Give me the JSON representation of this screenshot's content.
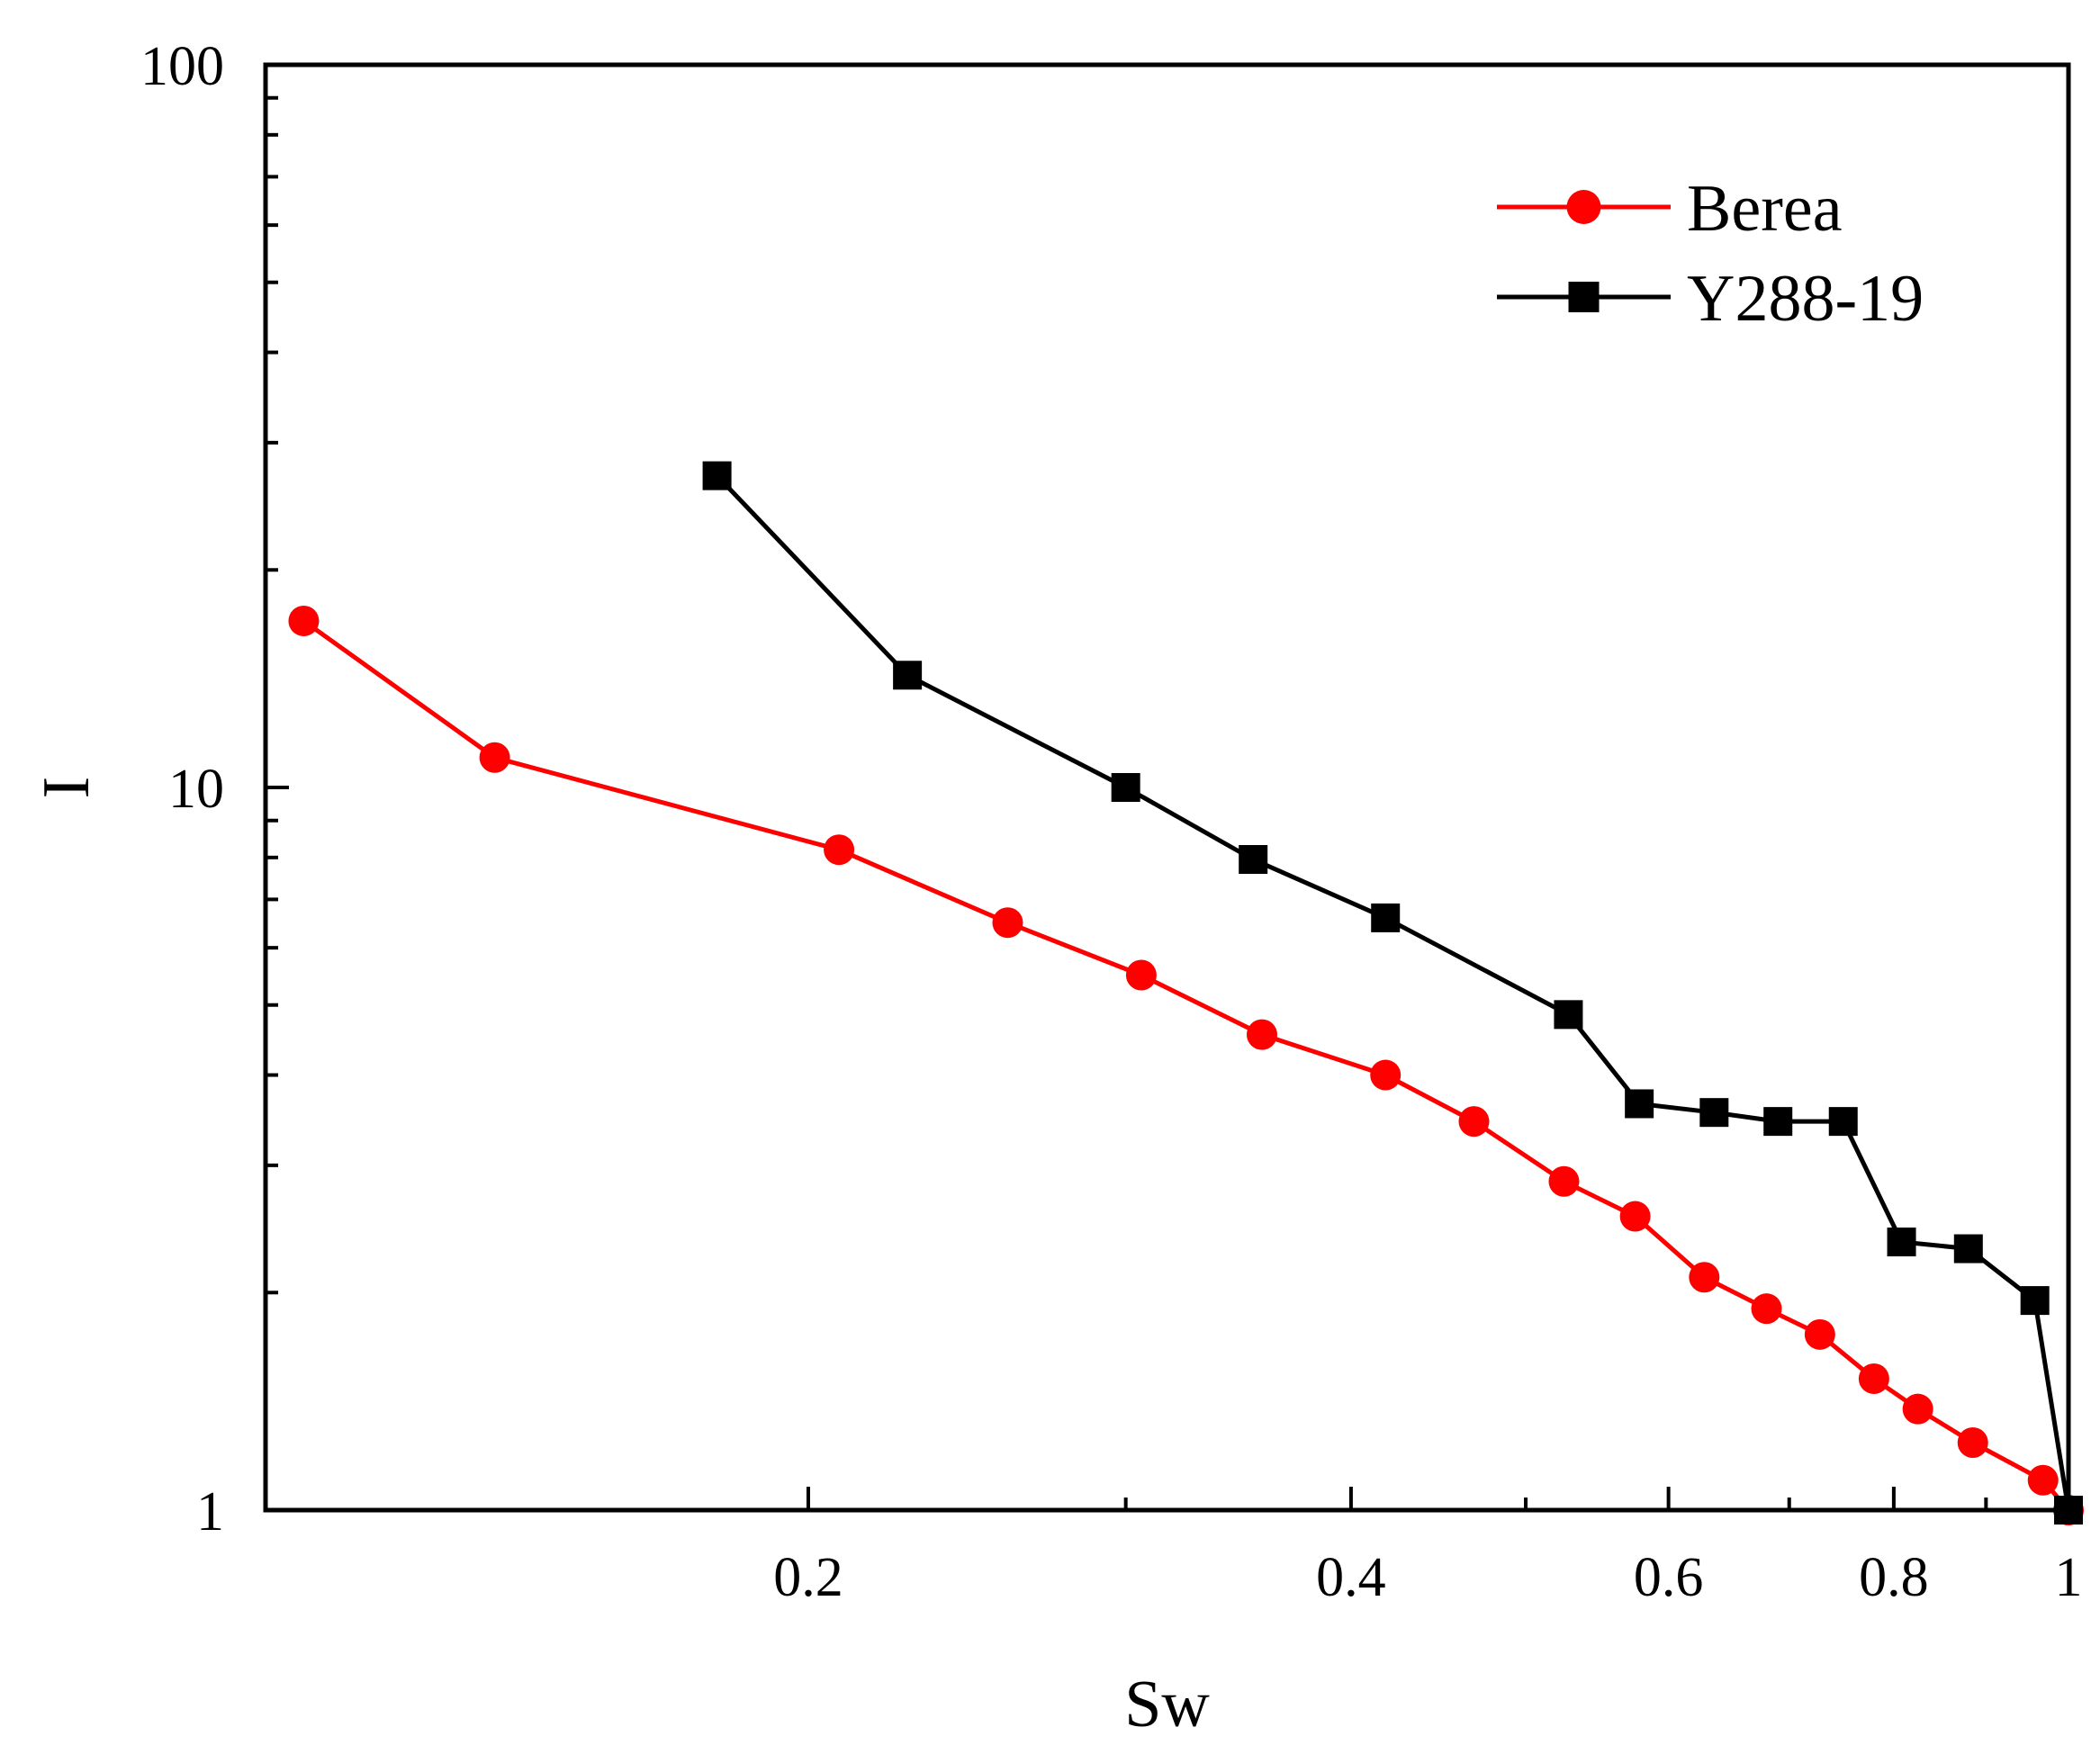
{
  "chart_data": {
    "type": "line",
    "x_scale": "log",
    "y_scale": "log",
    "xlabel": "Sw",
    "ylabel": "I",
    "xlim": [
      0.1,
      1
    ],
    "ylim": [
      1,
      100
    ],
    "x_ticks": [
      {
        "value": 0.2,
        "label": "0.2"
      },
      {
        "value": 0.4,
        "label": "0.4"
      },
      {
        "value": 0.6,
        "label": "0.6"
      },
      {
        "value": 0.8,
        "label": "0.8"
      },
      {
        "value": 1,
        "label": "1"
      }
    ],
    "y_ticks": [
      {
        "value": 1,
        "label": "1"
      },
      {
        "value": 10,
        "label": "10"
      },
      {
        "value": 100,
        "label": "100"
      }
    ],
    "legend_position": "top-right",
    "series": [
      {
        "name": "Berea",
        "color": "#ff0000",
        "marker": "circle",
        "x": [
          0.105,
          0.134,
          0.208,
          0.258,
          0.306,
          0.357,
          0.418,
          0.468,
          0.525,
          0.575,
          0.628,
          0.68,
          0.728,
          0.78,
          0.825,
          0.885,
          0.968,
          1.0
        ],
        "y": [
          17.0,
          11.0,
          8.2,
          6.5,
          5.5,
          4.55,
          4.0,
          3.45,
          2.85,
          2.55,
          2.1,
          1.9,
          1.75,
          1.52,
          1.38,
          1.24,
          1.1,
          1.0
        ]
      },
      {
        "name": "Y288-19",
        "color": "#000000",
        "marker": "square",
        "x": [
          0.178,
          0.227,
          0.3,
          0.353,
          0.418,
          0.528,
          0.578,
          0.636,
          0.69,
          0.75,
          0.808,
          0.88,
          0.958,
          1.0
        ],
        "y": [
          27.0,
          14.3,
          10.0,
          7.95,
          6.6,
          4.85,
          3.65,
          3.55,
          3.45,
          3.45,
          2.35,
          2.3,
          1.95,
          1.0
        ]
      }
    ]
  }
}
